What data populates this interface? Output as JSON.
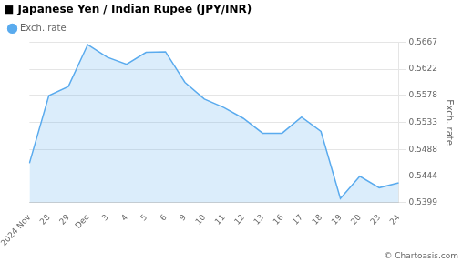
{
  "chart_data": {
    "type": "area",
    "title": "■ Japanese Yen / Indian Rupee (JPY/INR)",
    "y_label": "Exch. rate",
    "annotations": [
      "© Chartoasis.com"
    ],
    "categories": [
      "2024 Nov",
      "28",
      "29",
      "Dec",
      "3",
      "4",
      "5",
      "6",
      "9",
      "10",
      "11",
      "12",
      "13",
      "16",
      "17",
      "18",
      "19",
      "20",
      "23",
      "24"
    ],
    "series": [
      {
        "name": "Exch. rate",
        "color": "#5aabee",
        "values": [
          0.5465,
          0.5578,
          0.5593,
          0.5663,
          0.5642,
          0.563,
          0.565,
          0.5651,
          0.56,
          0.5572,
          0.5558,
          0.554,
          0.5515,
          0.5515,
          0.5542,
          0.5518,
          0.5406,
          0.5443,
          0.5424,
          0.5432
        ]
      }
    ],
    "ylim": [
      0.5399,
      0.5667
    ],
    "yticks": [
      0.5399,
      0.5444,
      0.5488,
      0.5533,
      0.5578,
      0.5622,
      0.5667
    ],
    "grid": true,
    "legend": "top-left"
  }
}
